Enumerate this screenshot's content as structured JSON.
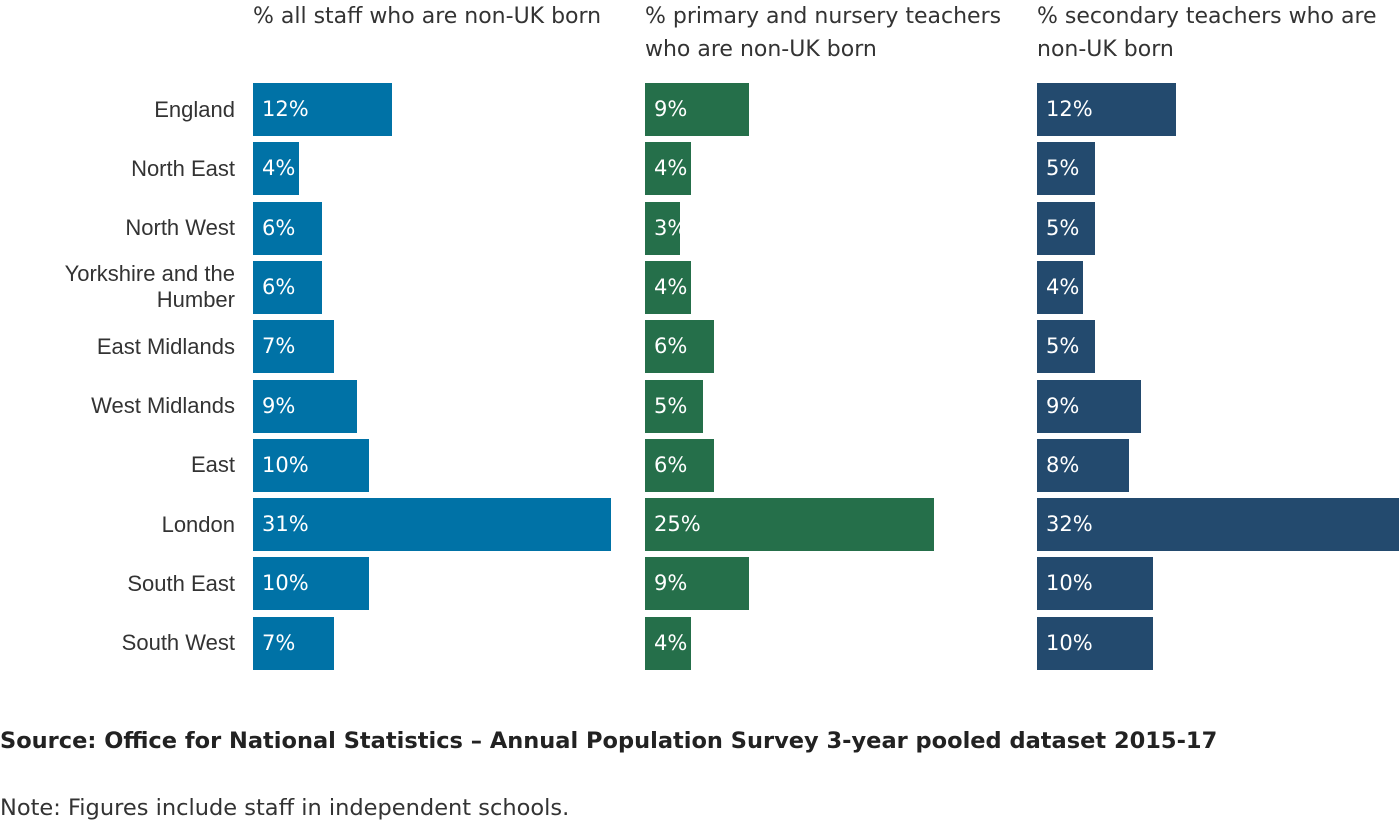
{
  "chart_data": {
    "type": "bar",
    "orientation": "horizontal",
    "categories": [
      "England",
      "North East",
      "North West",
      "Yorkshire and the Humber",
      "East Midlands",
      "West Midlands",
      "East",
      "London",
      "South East",
      "South West"
    ],
    "series": [
      {
        "name": "% all staff who are non-UK born",
        "color": "#0072A6",
        "values": [
          12,
          4,
          6,
          6,
          7,
          9,
          10,
          31,
          10,
          7
        ],
        "labels": [
          "12%",
          "4%",
          "6%",
          "6%",
          "7%",
          "9%",
          "10%",
          "31%",
          "10%",
          "7%"
        ]
      },
      {
        "name": "% primary and nursery teachers who are non-UK born",
        "color": "#256F4A",
        "values": [
          9,
          4,
          3,
          4,
          6,
          5,
          6,
          25,
          9,
          4
        ],
        "labels": [
          "9%",
          "4%",
          "3%",
          "4%",
          "6%",
          "5%",
          "6%",
          "25%",
          "9%",
          "4%"
        ]
      },
      {
        "name": "% secondary teachers who are non-UK born",
        "color": "#234A6E",
        "values": [
          12,
          5,
          5,
          4,
          5,
          9,
          8,
          32,
          10,
          10
        ],
        "labels": [
          "12%",
          "5%",
          "5%",
          "4%",
          "5%",
          "9%",
          "8%",
          "32%",
          "10%",
          "10%"
        ]
      }
    ]
  },
  "source": "Source: Office for National Statistics – Annual Population Survey 3-year pooled dataset 2015-17",
  "note": "Note: Figures include staff in independent schools."
}
